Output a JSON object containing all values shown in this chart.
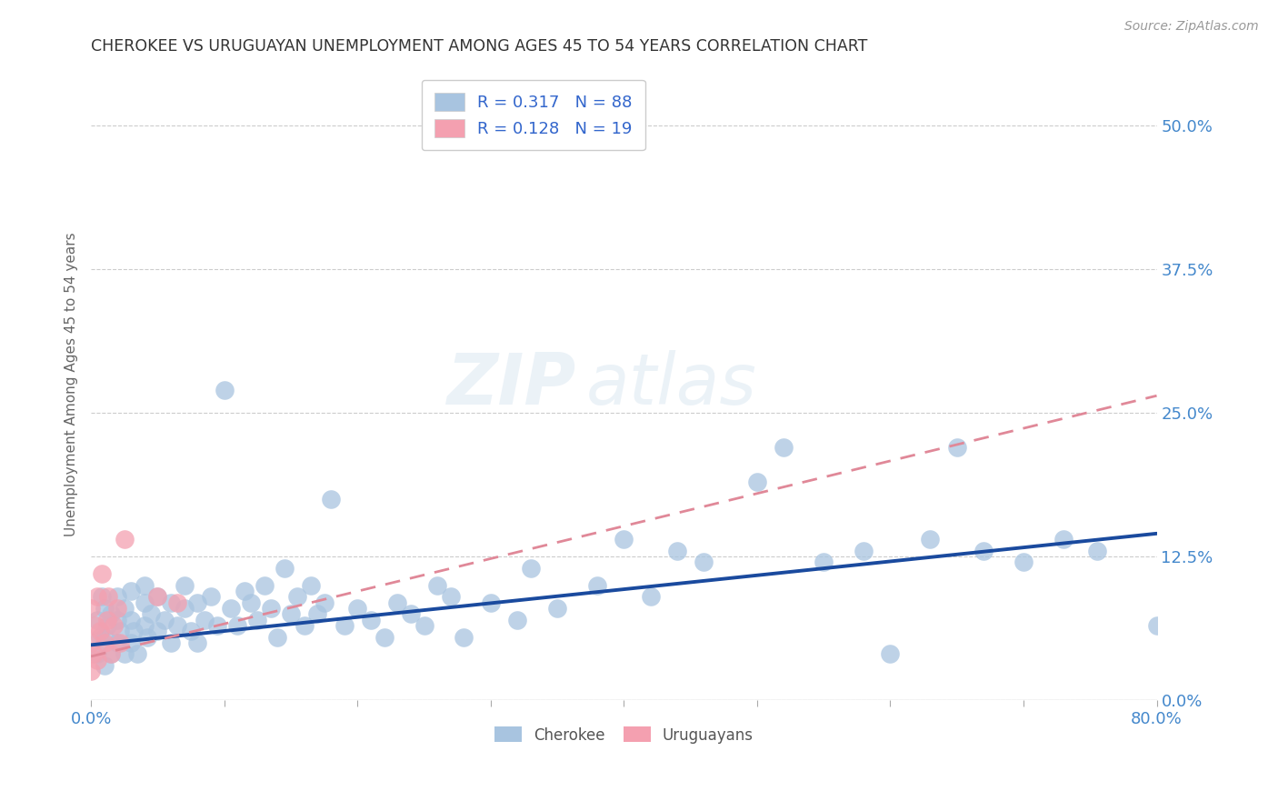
{
  "title": "CHEROKEE VS URUGUAYAN UNEMPLOYMENT AMONG AGES 45 TO 54 YEARS CORRELATION CHART",
  "source": "Source: ZipAtlas.com",
  "ylabel": "Unemployment Among Ages 45 to 54 years",
  "xlim": [
    0.0,
    0.8
  ],
  "ylim": [
    0.0,
    0.55
  ],
  "xticks": [
    0.0,
    0.1,
    0.2,
    0.3,
    0.4,
    0.5,
    0.6,
    0.7,
    0.8
  ],
  "xtick_labels_show": {
    "0.0": "0.0%",
    "0.8": "80.0%"
  },
  "ytick_labels_right": [
    "0.0%",
    "12.5%",
    "25.0%",
    "37.5%",
    "50.0%"
  ],
  "yticks_right": [
    0.0,
    0.125,
    0.25,
    0.375,
    0.5
  ],
  "legend_r1": "R = 0.317   N = 88",
  "legend_r2": "R = 0.128   N = 19",
  "cherokee_color": "#a8c4e0",
  "uruguayan_color": "#f4a0b0",
  "cherokee_line_color": "#1a4a9e",
  "uruguayan_line_color": "#e08898",
  "watermark_zip": "ZIP",
  "watermark_atlas": "atlas",
  "cherokee_x": [
    0.005,
    0.005,
    0.007,
    0.008,
    0.01,
    0.01,
    0.01,
    0.012,
    0.015,
    0.015,
    0.02,
    0.02,
    0.02,
    0.022,
    0.025,
    0.025,
    0.03,
    0.03,
    0.03,
    0.032,
    0.035,
    0.04,
    0.04,
    0.04,
    0.042,
    0.045,
    0.05,
    0.05,
    0.055,
    0.06,
    0.06,
    0.065,
    0.07,
    0.07,
    0.075,
    0.08,
    0.08,
    0.085,
    0.09,
    0.095,
    0.1,
    0.105,
    0.11,
    0.115,
    0.12,
    0.125,
    0.13,
    0.135,
    0.14,
    0.145,
    0.15,
    0.155,
    0.16,
    0.165,
    0.17,
    0.175,
    0.18,
    0.19,
    0.2,
    0.21,
    0.22,
    0.23,
    0.24,
    0.25,
    0.26,
    0.27,
    0.28,
    0.3,
    0.32,
    0.33,
    0.35,
    0.38,
    0.4,
    0.42,
    0.44,
    0.46,
    0.5,
    0.52,
    0.55,
    0.58,
    0.6,
    0.63,
    0.65,
    0.67,
    0.7,
    0.73,
    0.755,
    0.8
  ],
  "cherokee_y": [
    0.04,
    0.07,
    0.055,
    0.09,
    0.03,
    0.055,
    0.08,
    0.065,
    0.04,
    0.075,
    0.05,
    0.07,
    0.09,
    0.06,
    0.04,
    0.08,
    0.05,
    0.07,
    0.095,
    0.06,
    0.04,
    0.065,
    0.085,
    0.1,
    0.055,
    0.075,
    0.06,
    0.09,
    0.07,
    0.05,
    0.085,
    0.065,
    0.08,
    0.1,
    0.06,
    0.05,
    0.085,
    0.07,
    0.09,
    0.065,
    0.27,
    0.08,
    0.065,
    0.095,
    0.085,
    0.07,
    0.1,
    0.08,
    0.055,
    0.115,
    0.075,
    0.09,
    0.065,
    0.1,
    0.075,
    0.085,
    0.175,
    0.065,
    0.08,
    0.07,
    0.055,
    0.085,
    0.075,
    0.065,
    0.1,
    0.09,
    0.055,
    0.085,
    0.07,
    0.115,
    0.08,
    0.1,
    0.14,
    0.09,
    0.13,
    0.12,
    0.19,
    0.22,
    0.12,
    0.13,
    0.04,
    0.14,
    0.22,
    0.13,
    0.12,
    0.14,
    0.13,
    0.065
  ],
  "uruguayan_x": [
    0.0,
    0.0,
    0.0,
    0.002,
    0.003,
    0.005,
    0.005,
    0.007,
    0.008,
    0.01,
    0.012,
    0.013,
    0.015,
    0.017,
    0.02,
    0.022,
    0.025,
    0.05,
    0.065
  ],
  "uruguayan_y": [
    0.025,
    0.05,
    0.08,
    0.04,
    0.065,
    0.035,
    0.09,
    0.06,
    0.11,
    0.05,
    0.07,
    0.09,
    0.04,
    0.065,
    0.08,
    0.05,
    0.14,
    0.09,
    0.085
  ],
  "cherokee_line_x0": 0.0,
  "cherokee_line_y0": 0.048,
  "cherokee_line_x1": 0.8,
  "cherokee_line_y1": 0.145,
  "uruguayan_line_x0": 0.0,
  "uruguayan_line_y0": 0.038,
  "uruguayan_line_x1": 0.8,
  "uruguayan_line_y1": 0.265
}
